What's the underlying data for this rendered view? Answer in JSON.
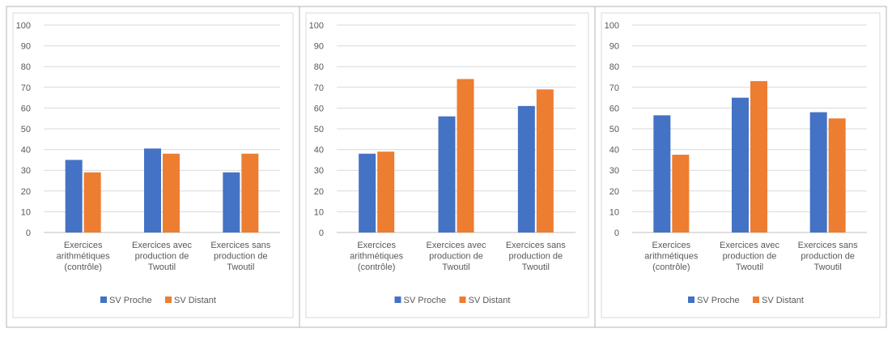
{
  "colors": {
    "series1": "#4472c4",
    "series2": "#ed7d31",
    "grid": "#d9d9d9",
    "text": "#595959",
    "cell_border": "#b4b4b4"
  },
  "chart_data": [
    {
      "type": "bar",
      "title": "",
      "xlabel": "",
      "ylabel": "",
      "ylim": [
        0,
        100
      ],
      "yticks": [
        "0",
        "10",
        "20",
        "30",
        "40",
        "50",
        "60",
        "70",
        "80",
        "90",
        "100"
      ],
      "grid": true,
      "legend_position": "bottom",
      "categories": [
        [
          "Exercices",
          "arithmétiques",
          "(contrôle)"
        ],
        [
          "Exercices avec",
          "production de",
          "Twoutil"
        ],
        [
          "Exercices sans",
          "production de",
          "Twoutil"
        ]
      ],
      "series": [
        {
          "name": "SV Proche",
          "values": [
            35,
            40.5,
            29
          ]
        },
        {
          "name": "SV Distant",
          "values": [
            29,
            38,
            38
          ]
        }
      ]
    },
    {
      "type": "bar",
      "title": "",
      "xlabel": "",
      "ylabel": "",
      "ylim": [
        0,
        100
      ],
      "yticks": [
        "0",
        "10",
        "20",
        "30",
        "40",
        "50",
        "60",
        "70",
        "80",
        "90",
        "100"
      ],
      "grid": true,
      "legend_position": "bottom",
      "categories": [
        [
          "Exercices",
          "arithmétiques",
          "(contrôle)"
        ],
        [
          "Exercices avec",
          "production de",
          "Twoutil"
        ],
        [
          "Exercices sans",
          "production de",
          "Twoutil"
        ]
      ],
      "series": [
        {
          "name": "SV Proche",
          "values": [
            38,
            56,
            61
          ]
        },
        {
          "name": "SV Distant",
          "values": [
            39,
            74,
            69
          ]
        }
      ]
    },
    {
      "type": "bar",
      "title": "",
      "xlabel": "",
      "ylabel": "",
      "ylim": [
        0,
        100
      ],
      "yticks": [
        "0",
        "10",
        "20",
        "30",
        "40",
        "50",
        "60",
        "70",
        "80",
        "90",
        "100"
      ],
      "grid": true,
      "legend_position": "bottom",
      "categories": [
        [
          "Exercices",
          "arithmétiques",
          "(contrôle)"
        ],
        [
          "Exercices avec",
          "production de",
          "Twoutil"
        ],
        [
          "Exercices sans",
          "production de",
          "Twoutil"
        ]
      ],
      "series": [
        {
          "name": "SV Proche",
          "values": [
            56.5,
            65,
            58
          ]
        },
        {
          "name": "SV Distant",
          "values": [
            37.5,
            73,
            55
          ]
        }
      ]
    }
  ]
}
